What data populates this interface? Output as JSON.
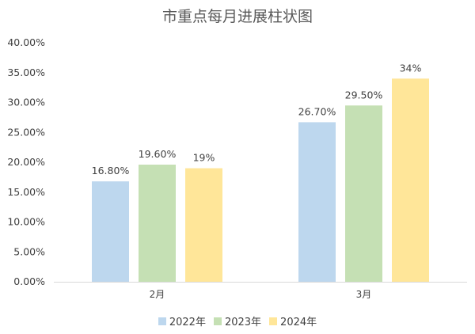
{
  "chart_data": {
    "type": "bar",
    "title": "市重点每月进展柱状图",
    "categories": [
      "2月",
      "3月"
    ],
    "series": [
      {
        "name": "2022年",
        "values": [
          16.8,
          26.7
        ],
        "labels": [
          "16.80%",
          "26.70%"
        ],
        "color": "#BDD7EE"
      },
      {
        "name": "2023年",
        "values": [
          19.6,
          29.5
        ],
        "labels": [
          "19.60%",
          "29.50%"
        ],
        "color": "#C5E0B4"
      },
      {
        "name": "2024年",
        "values": [
          19,
          34
        ],
        "labels": [
          "19%",
          "34%"
        ],
        "color": "#FFE699"
      }
    ],
    "y_ticks": [
      "0.00%",
      "5.00%",
      "10.00%",
      "15.00%",
      "20.00%",
      "25.00%",
      "30.00%",
      "35.00%",
      "40.00%"
    ],
    "ylim": [
      0,
      40
    ],
    "grid": false,
    "legend_position": "bottom"
  }
}
